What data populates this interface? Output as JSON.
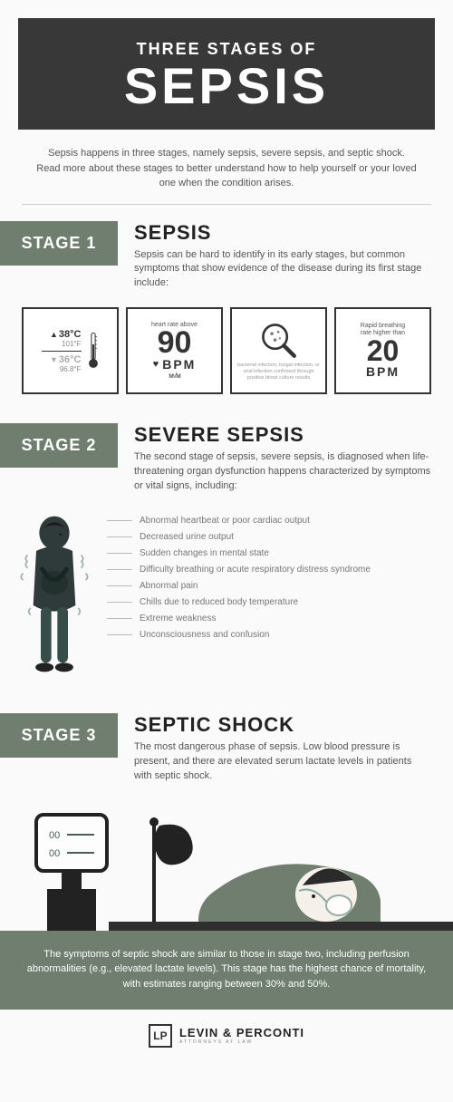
{
  "colors": {
    "header_bg": "#383838",
    "accent": "#6f7e6e",
    "page_bg": "#fafafa",
    "text_muted": "#555"
  },
  "header": {
    "line1": "THREE STAGES OF",
    "line2": "SEPSIS"
  },
  "intro": "Sepsis happens in three stages, namely sepsis, severe sepsis, and septic shock. Read more about these stages to better understand how to help yourself or your loved one when the condition arises.",
  "stage1": {
    "badge": "STAGE 1",
    "title": "SEPSIS",
    "desc": "Sepsis can be hard to identify in its early stages, but common symptoms that show evidence of the disease during its first stage include:",
    "tile_temp": {
      "high_c": "38°C",
      "high_f": "101°F",
      "low_c": "36°C",
      "low_f": "96.8°F"
    },
    "tile_hr": {
      "label": "heart rate above",
      "value": "90",
      "unit": "BPM"
    },
    "tile_culture": {
      "caption": "bacterial infection, fungal infection, or viral infection confirmed through positive blood culture results"
    },
    "tile_breath": {
      "label1": "Rapid breathing",
      "label2": "rate higher than",
      "value": "20",
      "unit": "BPM"
    }
  },
  "stage2": {
    "badge": "STAGE 2",
    "title": "SEVERE SEPSIS",
    "desc": "The second stage of sepsis, severe sepsis, is diagnosed when life-threatening organ dysfunction happens characterized by symptoms or vital signs, including:",
    "symptoms": [
      "Abnormal heartbeat or poor cardiac output",
      "Decreased urine output",
      "Sudden changes in mental state",
      "Difficulty breathing or acute respiratory distress syndrome",
      "Abnormal pain",
      "Chills due to reduced body temperature",
      "Extreme weakness",
      "Unconsciousness and confusion"
    ]
  },
  "stage3": {
    "badge": "STAGE 3",
    "title": "SEPTIC SHOCK",
    "desc": "The most dangerous phase of sepsis. Low blood pressure is present, and there are elevated serum lactate levels in patients with septic shock.",
    "monitor": "00",
    "bottom_text": "The symptoms of septic shock are similar to those in stage two, including perfusion abnormalities (e.g., elevated lactate levels). This stage has the highest chance of mortality, with estimates ranging between 30% and 50%."
  },
  "footer": {
    "mark": "LP",
    "name": "LEVIN & PERCONTI",
    "sub": "ATTORNEYS AT LAW"
  }
}
